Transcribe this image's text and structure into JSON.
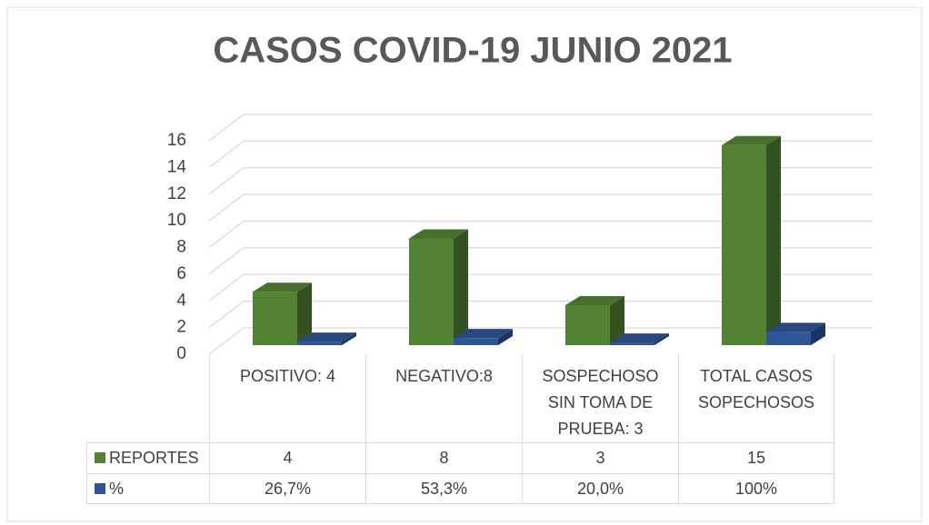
{
  "chart_data": {
    "type": "bar3d",
    "title": "CASOS COVID-19 JUNIO 2021",
    "categories": [
      "POSITIVO: 4",
      "NEGATIVO:8",
      "SOSPECHOSO SIN TOMA DE PRUEBA: 3",
      "TOTAL CASOS SOPECHOSOS"
    ],
    "series": [
      {
        "name": "REPORTES",
        "color": "#548235",
        "values": [
          4,
          8,
          3,
          15
        ]
      },
      {
        "name": "%",
        "color": "#2f5597",
        "values": [
          0.267,
          0.533,
          0.2,
          1
        ],
        "value_labels": [
          "26,7%",
          "53,3%",
          "20,0%",
          "100%"
        ]
      }
    ],
    "ylim": [
      0,
      16
    ],
    "yticks": [
      0,
      2,
      4,
      6,
      8,
      10,
      12,
      14,
      16
    ],
    "grid": true,
    "data_table": true
  }
}
